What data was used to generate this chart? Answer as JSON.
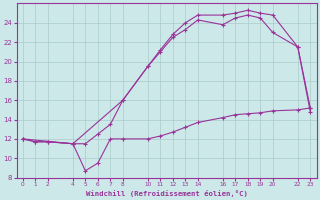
{
  "xlabel": "Windchill (Refroidissement éolien,°C)",
  "background_color": "#cce8e8",
  "grid_color": "#aacccc",
  "line_color": "#993399",
  "xlim": [
    -0.5,
    23.5
  ],
  "ylim": [
    8,
    26
  ],
  "yticks": [
    8,
    10,
    12,
    14,
    16,
    18,
    20,
    22,
    24
  ],
  "x_ticks": [
    0,
    1,
    2,
    4,
    5,
    6,
    7,
    8,
    10,
    11,
    12,
    13,
    14,
    16,
    17,
    18,
    19,
    20,
    22,
    23
  ],
  "series1_x": [
    0,
    1,
    2,
    4,
    5,
    6,
    7,
    8,
    10,
    11,
    12,
    13,
    14,
    16,
    17,
    18,
    19,
    20,
    22,
    23
  ],
  "series1_y": [
    12.0,
    11.7,
    11.7,
    11.5,
    8.7,
    9.5,
    12.0,
    12.0,
    12.0,
    12.3,
    12.7,
    13.2,
    13.7,
    14.2,
    14.5,
    14.6,
    14.7,
    14.9,
    15.0,
    15.2
  ],
  "series2_x": [
    0,
    1,
    2,
    4,
    5,
    6,
    7,
    8,
    10,
    11,
    12,
    13,
    14,
    16,
    17,
    18,
    19,
    20,
    22,
    23
  ],
  "series2_y": [
    12.0,
    11.7,
    11.7,
    11.5,
    11.5,
    12.5,
    13.5,
    16.0,
    19.5,
    21.0,
    22.5,
    23.3,
    24.3,
    23.8,
    24.5,
    24.8,
    24.5,
    23.0,
    21.5,
    14.8
  ],
  "series3_x": [
    0,
    4,
    8,
    10,
    11,
    12,
    13,
    14,
    16,
    17,
    18,
    19,
    20,
    22,
    23
  ],
  "series3_y": [
    12.0,
    11.5,
    16.0,
    19.5,
    21.2,
    22.8,
    24.0,
    24.8,
    24.8,
    25.0,
    25.3,
    25.0,
    24.8,
    21.5,
    15.2
  ]
}
